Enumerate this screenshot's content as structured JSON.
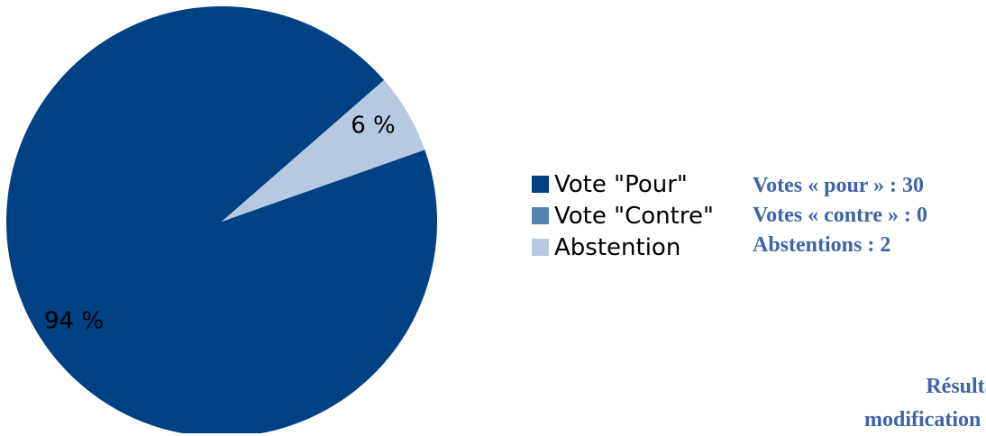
{
  "chart_data": {
    "type": "pie",
    "labels": [
      "Vote \"Pour\"",
      "Vote \"Contre\"",
      "Abstention"
    ],
    "values": [
      94,
      0,
      6
    ],
    "value_labels": [
      "94 %",
      "",
      "6 %"
    ],
    "colors": [
      "#004183",
      "#5882B3",
      "#B6C9E1"
    ],
    "legend_position": "right"
  },
  "summary": {
    "votes_pour": "Votes « pour » : 30",
    "votes_contre": "Votes « contre » : 0",
    "abstentions": "Abstentions : 2"
  },
  "caption": {
    "line1": "Résultat",
    "line2": "modification ac"
  }
}
